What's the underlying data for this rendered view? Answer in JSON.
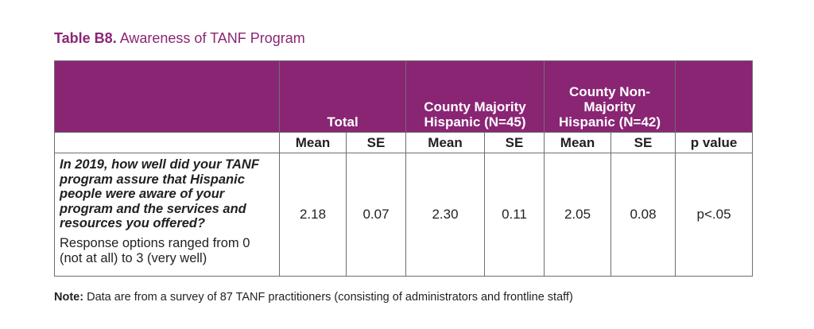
{
  "caption": {
    "label": "Table B8.",
    "title": "Awareness of TANF Program"
  },
  "table": {
    "group_headers": {
      "total": "Total",
      "majority": "County Majority Hispanic (N=45)",
      "non_majority": "County Non-Majority Hispanic (N=42)"
    },
    "sub_headers": [
      "Mean",
      "SE",
      "Mean",
      "SE",
      "Mean",
      "SE",
      "p value"
    ],
    "rows": [
      {
        "question": "In 2019, how well did your TANF program assure that Hispanic people were aware of your program and the services and resources you offered?",
        "response_note": "Response options ranged from 0 (not at all) to 3 (very well)",
        "values": [
          "2.18",
          "0.07",
          "2.30",
          "0.11",
          "2.05",
          "0.08",
          "p<.05"
        ]
      }
    ]
  },
  "note": {
    "label": "Note:",
    "text": "Data are from a survey of 87 TANF practitioners (consisting of administrators and frontline staff)"
  }
}
